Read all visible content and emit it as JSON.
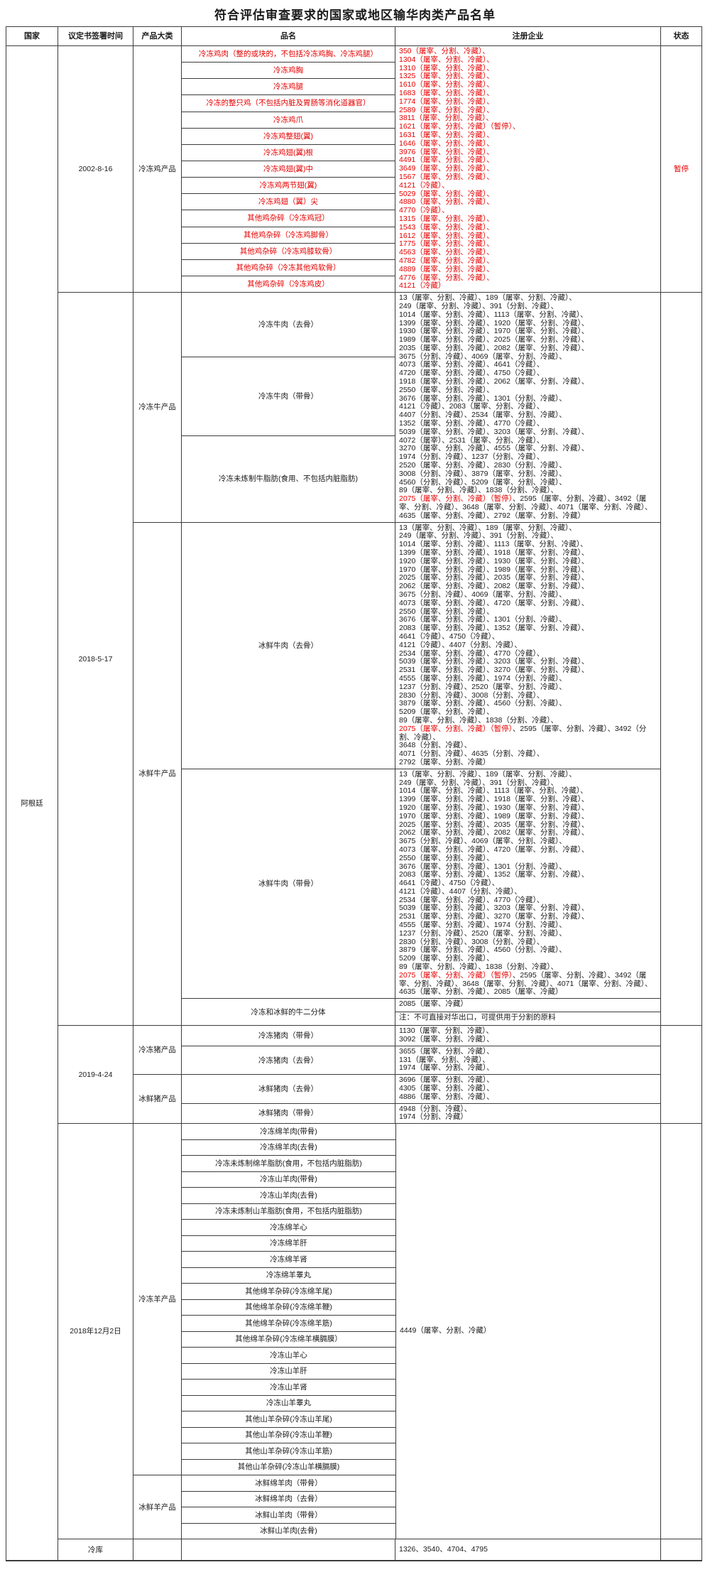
{
  "title": "符合评估审查要求的国家或地区输华肉类产品名单",
  "columns": {
    "country": "国家",
    "date": "议定书签署时间",
    "category": "产品大类",
    "product": "品名",
    "enterprise": "注册企业",
    "status": "状态"
  },
  "country": "阿根廷",
  "accent_red": "#e60000",
  "footer": {
    "label": "冷库",
    "enterprises": "1326、3540、4704、4795"
  },
  "sections": [
    {
      "date": "2002-8-16",
      "status": "暂停",
      "status_red": true,
      "categories": [
        {
          "name": "冷冻鸡产品",
          "groups": [
            {
              "products_red": true,
              "products": [
                "冷冻鸡肉（整的或块的，不包括冷冻鸡胸、冷冻鸡腿）",
                "冷冻鸡胸",
                "冷冻鸡腿",
                "冷冻的整只鸡（不包括内脏及胃肠等消化道器官）",
                "冷冻鸡爪",
                "冷冻鸡整翅(翼)",
                "冷冻鸡翅(翼)根",
                "冷冻鸡翅(翼)中",
                "冷冻鸡两节翅(翼)",
                "冷冻鸡翅（翼）尖",
                "其他鸡杂碎（冷冻鸡冠）",
                "其他鸡杂碎（冷冻鸡脚骨）",
                "其他鸡杂碎（冷冻鸡膝软骨）",
                "其他鸡杂碎（冷冻其他鸡软骨）",
                "其他鸡杂碎（冷冻鸡皮）"
              ],
              "enterprise": {
                "red": true,
                "lines": [
                  "350（屠宰、分割、冷藏）、",
                  "1304（屠宰、分割、冷藏）、",
                  "1310（屠宰、分割、冷藏）、",
                  "1325（屠宰、分割、冷藏）、",
                  "1610（屠宰、分割、冷藏）、",
                  "1683（屠宰、分割、冷藏）、",
                  "1774（屠宰、分割、冷藏）、",
                  "2589（屠宰、分割、冷藏）、",
                  "3811（屠宰、分割、冷藏）、",
                  "1621（屠宰、分割、冷藏）（暂停）、",
                  "1631（屠宰、分割、冷藏）、",
                  "1646（屠宰、分割、冷藏）、",
                  "3976（屠宰、分割、冷藏）、",
                  "4491（屠宰、分割、冷藏）、",
                  "3649（屠宰、分割、冷藏）、",
                  "1567（屠宰、分割、冷藏）、",
                  "4121（冷藏）、",
                  "5029（屠宰、分割、冷藏）、",
                  "4880（屠宰、分割、冷藏）、",
                  "4770（冷藏）、",
                  "1315（屠宰、分割、冷藏）、",
                  "1543（屠宰、分割、冷藏）、",
                  "1612（屠宰、分割、冷藏）、",
                  "1775（屠宰、分割、冷藏）、",
                  "4563（屠宰、分割、冷藏）、",
                  "4782（屠宰、分割、冷藏）、",
                  "4889（屠宰、分割、冷藏）、",
                  "4776（屠宰、分割、冷藏）、",
                  "4121（冷藏）"
                ]
              }
            }
          ]
        }
      ]
    },
    {
      "date": "2018-5-17",
      "status": "",
      "categories": [
        {
          "name": "冷冻牛产品",
          "groups": [
            {
              "weights": [
                94,
                115,
                127
              ],
              "products": [
                "冷冻牛肉（去骨）",
                "冷冻牛肉（带骨）",
                "冷冻未炼制牛脂肪(食用、不包括内脏脂肪)"
              ],
              "enterprise": {
                "lines": [
                  "13（屠宰、分割、冷藏）、189（屠宰、分割、冷藏）、",
                  "249（屠宰、分割、冷藏）、391（分割、冷藏）、",
                  "1014（屠宰、分割、冷藏）、1113（屠宰、分割、冷藏）、",
                  "1399（屠宰、分割、冷藏）、1920（屠宰、分割、冷藏）、",
                  "1930（屠宰、分割、冷藏）、1970（屠宰、分割、冷藏）、",
                  "1989（屠宰、分割、冷藏）、2025（屠宰、分割、冷藏）、",
                  "2035（屠宰、分割、冷藏）、2082（屠宰、分割、冷藏）、",
                  "3675（分割、冷藏）、4069（屠宰、分割、冷藏）、",
                  "4073（屠宰、分割、冷藏）、4641（冷藏）、",
                  "4720（屠宰、分割、冷藏）、4750（冷藏）、",
                  "1918（屠宰、分割、冷藏）、2062（屠宰、分割、冷藏）、",
                  "2550（屠宰、分割、冷藏）、",
                  "3676（屠宰、分割、冷藏）、1301（分割、冷藏）、",
                  "4121（冷藏）、2083（屠宰、分割、冷藏）、",
                  "4407（分割、冷藏）、2534（屠宰、分割、冷藏）、",
                  "1352（屠宰、分割、冷藏）、4770（冷藏）、",
                  "5039（屠宰、分割、冷藏）、3203（屠宰、分割、冷藏）、",
                  "4072（屠宰）、2531（屠宰、分割、冷藏）、",
                  "3270（屠宰、分割、冷藏）、4555（屠宰、分割、冷藏）、",
                  "1974（分割、冷藏）、1237（分割、冷藏）、",
                  "2520（屠宰、分割、冷藏）、2830（分割、冷藏）、",
                  "3008（分割、冷藏）、3879（屠宰、分割、冷藏）、",
                  "4560（分割、冷藏）、5209（屠宰、分割、冷藏）、",
                  "89（屠宰、分割、冷藏）、1838（分割、冷藏）、",
                  {
                    "seg": [
                      {
                        "t": "2075（屠宰、分割、冷藏）（暂停）",
                        "red": true
                      },
                      {
                        "t": "、2595（屠宰、分割、冷藏）、3492（屠宰、分割、冷藏）、3648（屠宰、分割、冷藏）、4071（屠宰、分割、冷藏）、4635（屠宰、分割、冷藏）、2792（屠宰、分割、冷藏）"
                      }
                    ]
                  }
                ]
              }
            }
          ]
        },
        {
          "name": "冰鲜牛产品",
          "groups": [
            {
              "products": [
                "冰鲜牛肉（去骨）"
              ],
              "enterprise": {
                "lines": [
                  "13（屠宰、分割、冷藏）、189（屠宰、分割、冷藏）、",
                  "249（屠宰、分割、冷藏）、391（分割、冷藏）、",
                  "1014（屠宰、分割、冷藏）、1113（屠宰、分割、冷藏）、",
                  "1399（屠宰、分割、冷藏）、1918（屠宰、分割、冷藏）、",
                  "1920（屠宰、分割、冷藏）、1930（屠宰、分割、冷藏）、",
                  "1970（屠宰、分割、冷藏）、1989（屠宰、分割、冷藏）、",
                  "2025（屠宰、分割、冷藏）、2035（屠宰、分割、冷藏）、",
                  "2062（屠宰、分割、冷藏）、2082（屠宰、分割、冷藏）、",
                  "3675（分割、冷藏）、4069（屠宰、分割、冷藏）、",
                  "4073（屠宰、分割、冷藏）、4720（屠宰、分割、冷藏）、",
                  "2550（屠宰、分割、冷藏）、",
                  "3676（屠宰、分割、冷藏）、1301（分割、冷藏）、",
                  "2083（屠宰、分割、冷藏）、1352（屠宰、分割、冷藏）、",
                  "4641（冷藏）、4750（冷藏）、",
                  "4121（冷藏）、4407（分割、冷藏）、",
                  "2534（屠宰、分割、冷藏）、4770（冷藏）、",
                  "5039（屠宰、分割、冷藏）、3203（屠宰、分割、冷藏）、",
                  "2531（屠宰、分割、冷藏）、3270（屠宰、分割、冷藏）、",
                  "4555（屠宰、分割、冷藏）、1974（分割、冷藏）、",
                  "1237（分割、冷藏）、2520（屠宰、分割、冷藏）、",
                  "2830（分割、冷藏）、3008（分割、冷藏）、",
                  "3879（屠宰、分割、冷藏）、4560（分割、冷藏）、",
                  "5209（屠宰、分割、冷藏）、",
                  "89（屠宰、分割、冷藏）、1838（分割、冷藏）、",
                  {
                    "seg": [
                      {
                        "t": "2075（屠宰、分割、冷藏）（暂停）",
                        "red": true
                      },
                      {
                        "t": "、2595（屠宰、分割、冷藏）、3492（分割、冷藏）、"
                      }
                    ]
                  },
                  "3648（分割、冷藏）、",
                  "4071（分割、冷藏）、4635（分割、冷藏）、",
                  "2792（屠宰、分割、冷藏）"
                ]
              }
            },
            {
              "products": [
                "冰鲜牛肉（带骨）"
              ],
              "enterprise": {
                "lines": [
                  "13（屠宰、分割、冷藏）、189（屠宰、分割、冷藏）、",
                  "249（屠宰、分割、冷藏）、391（分割、冷藏）、",
                  "1014（屠宰、分割、冷藏）、1113（屠宰、分割、冷藏）、",
                  "1399（屠宰、分割、冷藏）、1918（屠宰、分割、冷藏）、",
                  "1920（屠宰、分割、冷藏）、1930（屠宰、分割、冷藏）、",
                  "1970（屠宰、分割、冷藏）、1989（屠宰、分割、冷藏）、",
                  "2025（屠宰、分割、冷藏）、2035（屠宰、分割、冷藏）、",
                  "2062（屠宰、分割、冷藏）、2082（屠宰、分割、冷藏）、",
                  "3675（分割、冷藏）、4069（屠宰、分割、冷藏）、",
                  "4073（屠宰、分割、冷藏）、4720（屠宰、分割、冷藏）、",
                  "2550（屠宰、分割、冷藏）、",
                  "3676（屠宰、分割、冷藏）、1301（分割、冷藏）、",
                  "2083（屠宰、分割、冷藏）、1352（屠宰、分割、冷藏）、",
                  "4641（冷藏）、4750（冷藏）、",
                  "4121（冷藏）、4407（分割、冷藏）、",
                  "2534（屠宰、分割、冷藏）、4770（冷藏）、",
                  "5039（屠宰、分割、冷藏）、3203（屠宰、分割、冷藏）、",
                  "2531（屠宰、分割、冷藏）、3270（屠宰、分割、冷藏）、",
                  "4555（屠宰、分割、冷藏）、1974（分割、冷藏）、",
                  "1237（分割、冷藏）、2520（屠宰、分割、冷藏）、",
                  "2830（分割、冷藏）、3008（分割、冷藏）、",
                  "3879（屠宰、分割、冷藏）、4560（分割、冷藏）、",
                  "5209（屠宰、分割、冷藏）、",
                  "89（屠宰、分割、冷藏）、1838（分割、冷藏）、",
                  {
                    "seg": [
                      {
                        "t": "2075（屠宰、分割、冷藏）（暂停）",
                        "red": true
                      },
                      {
                        "t": "、2595（屠宰、分割、冷藏）、3492（屠宰、分割、冷藏）、3648（屠宰、分割、冷藏）、4071（屠宰、分割、冷藏）、4635（屠宰、分割、冷藏）、2085（屠宰、冷藏）"
                      }
                    ]
                  }
                ]
              }
            },
            {
              "products": [
                "冷冻和冰鲜的牛二分体"
              ],
              "enterprise_stack": [
                "2085（屠宰、冷藏）",
                "注：不可直接对华出口，可提供用于分割的原料"
              ]
            }
          ]
        }
      ]
    },
    {
      "date": "2019-4-24",
      "status": "",
      "pork": true,
      "categories": [
        {
          "name": "冷冻猪产品",
          "groups": [
            {
              "products": [
                "冷冻猪肉（带骨）"
              ],
              "enterprise": {
                "lines": [
                  "1130（屠宰、分割、冷藏）、",
                  "3092（屠宰、分割、冷藏）、"
                ]
              }
            },
            {
              "products": [
                "冷冻猪肉（去骨）"
              ],
              "enterprise": {
                "lines": [
                  "3655（屠宰、分割、冷藏）、",
                  "131（屠宰、分割、冷藏）、",
                  "1974（屠宰、分割、冷藏）、"
                ]
              }
            }
          ]
        },
        {
          "name": "冰鲜猪产品",
          "groups": [
            {
              "products": [
                "冰鲜猪肉（去骨）"
              ],
              "enterprise": {
                "lines": [
                  "3696（屠宰、分割、冷藏）、",
                  "4305（屠宰、分割、冷藏）、",
                  "4886（屠宰、分割、冷藏）、"
                ]
              }
            },
            {
              "products": [
                "冰鲜猪肉（带骨）"
              ],
              "enterprise": {
                "lines": [
                  "4948（分割、冷藏）、",
                  "1974（分割、冷藏）"
                ]
              }
            }
          ]
        }
      ]
    },
    {
      "date": "2018年12月2日",
      "status": "",
      "sheep": true,
      "enterprise": "4449（屠宰、分割、冷藏）",
      "categories": [
        {
          "name": "冷冻羊产品",
          "groups": [
            {
              "products": [
                "冷冻绵羊肉(带骨)",
                "冷冻绵羊肉(去骨)",
                "冷冻未炼制绵羊脂肪(食用，不包括内脏脂肪)",
                "冷冻山羊肉(带骨)",
                "冷冻山羊肉(去骨)",
                "冷冻未炼制山羊脂肪(食用，不包括内脏脂肪)",
                "冷冻绵羊心",
                "冷冻绵羊肝",
                "冷冻绵羊肾",
                "冷冻绵羊睾丸",
                "其他绵羊杂碎(冷冻绵羊尾)",
                "其他绵羊杂碎(冷冻绵羊鞭)",
                "其他绵羊杂碎(冷冻绵羊筋)",
                "其他绵羊杂碎(冷冻绵羊横膈膜）",
                "冷冻山羊心",
                "冷冻山羊肝",
                "冷冻山羊肾",
                "冷冻山羊睾丸",
                "其他山羊杂碎(冷冻山羊尾)",
                "其他山羊杂碎(冷冻山羊鞭)",
                "其他山羊杂碎(冷冻山羊筋)",
                "其他山羊杂碎(冷冻山羊横膈膜)"
              ]
            }
          ]
        },
        {
          "name": "冰鲜羊产品",
          "groups": [
            {
              "products": [
                "冰鲜绵羊肉（带骨）",
                "冰鲜绵羊肉（去骨）",
                "冰鲜山羊肉（带骨）",
                "冰鲜山羊肉(去骨)"
              ]
            }
          ]
        }
      ]
    }
  ]
}
